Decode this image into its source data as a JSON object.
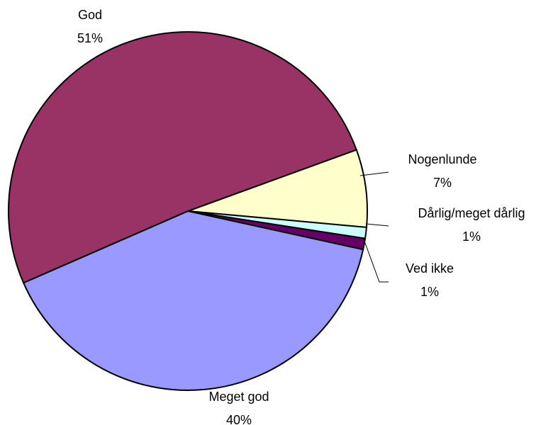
{
  "chart_data": {
    "type": "pie",
    "categories": [
      "Nogenlunde",
      "Dårlig/meget dårlig",
      "Ved ikke",
      "Meget god",
      "God"
    ],
    "values": [
      7,
      1,
      1,
      40,
      51
    ],
    "value_labels": [
      "7%",
      "1%",
      "1%",
      "40%",
      "51%"
    ],
    "colors": [
      "#ffffcc",
      "#ccffff",
      "#660066",
      "#9999ff",
      "#993366"
    ]
  }
}
